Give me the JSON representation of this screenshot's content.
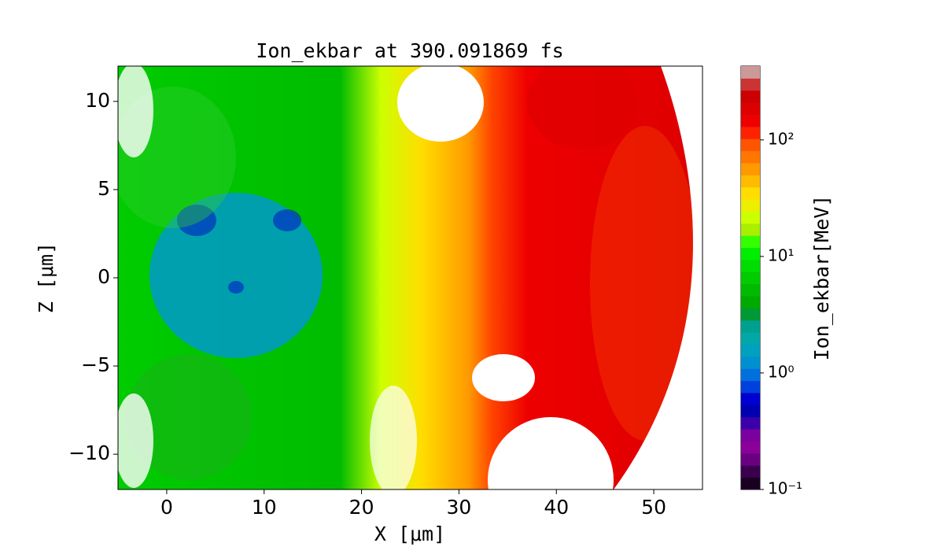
{
  "chart_data": {
    "type": "heatmap",
    "title": "Ion_ekbar at 390.091869 fs",
    "xlabel": "X [μm]",
    "ylabel": "Z [μm]",
    "xlim": [
      -5,
      55
    ],
    "xticks": [
      0,
      10,
      20,
      30,
      40,
      50
    ],
    "ylim": [
      -12,
      12
    ],
    "yticks": [
      {
        "value": -10,
        "label": "−10"
      },
      {
        "value": -5,
        "label": "−5"
      },
      0,
      5,
      10
    ],
    "colorbar": {
      "label": "Ion_ekbar[MeV]",
      "scale": "log",
      "lim": [
        0.1,
        430
      ],
      "ticks": [
        {
          "value": 0.1,
          "label": "10⁻¹"
        },
        {
          "value": 1,
          "label": "10⁰"
        },
        {
          "value": 10,
          "label": "10¹"
        },
        {
          "value": 100,
          "label": "10²"
        }
      ],
      "colors": [
        "#1a0020",
        "#3a0050",
        "#6a0080",
        "#8a0099",
        "#7a00a0",
        "#3b00aa",
        "#0000b0",
        "#0000d0",
        "#0040dd",
        "#0070dd",
        "#0090d0",
        "#00a0c0",
        "#00a8a8",
        "#00a090",
        "#009933",
        "#00aa00",
        "#00bb00",
        "#00cc00",
        "#00dd00",
        "#00ee00",
        "#33ff00",
        "#aaee00",
        "#ccff00",
        "#eeee00",
        "#ffdd00",
        "#ffbb00",
        "#ff9900",
        "#ff7700",
        "#ff5500",
        "#ff2200",
        "#ee0000",
        "#dd0000",
        "#cc0000",
        "#cc3333",
        "#cc9999"
      ]
    }
  }
}
